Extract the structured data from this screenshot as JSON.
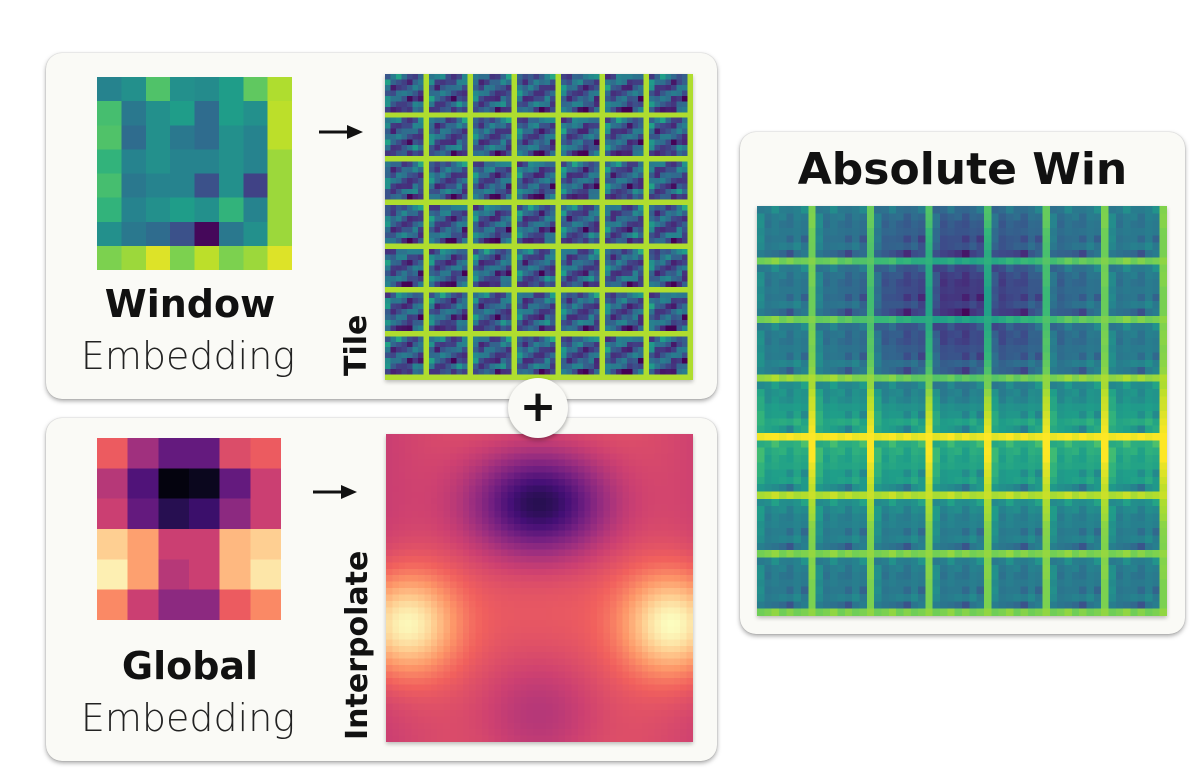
{
  "window_panel": {
    "title": "Window",
    "subtitle": "Embedding",
    "operation": "Tile"
  },
  "global_panel": {
    "title": "Global",
    "subtitle": "Embedding",
    "operation": "Interpolate"
  },
  "combine_symbol": "+",
  "result_panel": {
    "title": "Absolute Win"
  },
  "colormaps": {
    "window": "viridis",
    "global": "magma"
  }
}
